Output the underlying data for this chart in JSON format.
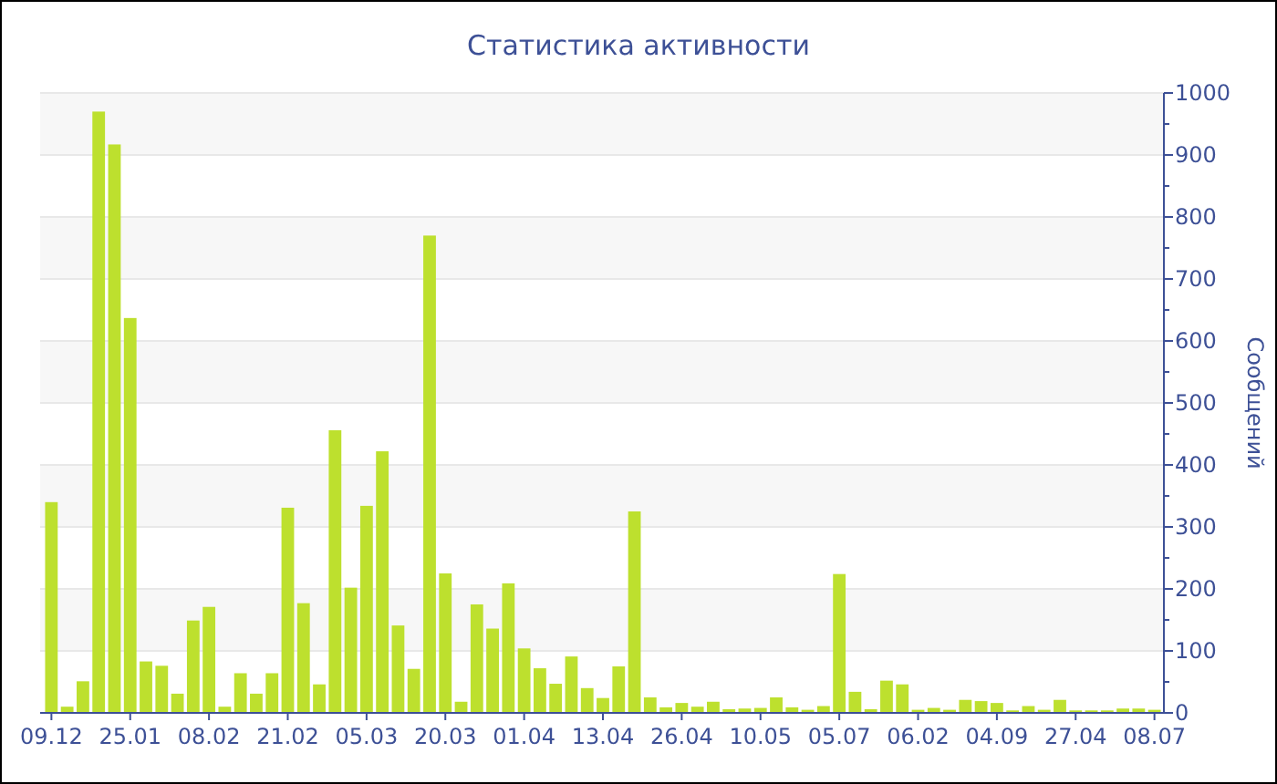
{
  "chart_data": {
    "type": "bar",
    "title": "Статистика активности",
    "ylabel": "Сообщений",
    "categories": [
      "09.12",
      null,
      null,
      null,
      null,
      "25.01",
      null,
      null,
      null,
      null,
      "08.02",
      null,
      null,
      null,
      null,
      "21.02",
      null,
      null,
      null,
      null,
      "05.03",
      null,
      null,
      null,
      null,
      "20.03",
      null,
      null,
      null,
      null,
      "01.04",
      null,
      null,
      null,
      null,
      "13.04",
      null,
      null,
      null,
      null,
      "26.04",
      null,
      null,
      null,
      null,
      "10.05",
      null,
      null,
      null,
      null,
      "05.07",
      null,
      null,
      null,
      null,
      "06.02",
      null,
      null,
      null,
      null,
      "04.09",
      null,
      null,
      null,
      null,
      "27.04",
      null,
      null,
      null,
      null,
      "08.07"
    ],
    "values": [
      340,
      10,
      51,
      970,
      917,
      637,
      83,
      76,
      31,
      149,
      171,
      10,
      64,
      31,
      64,
      331,
      177,
      46,
      456,
      202,
      334,
      422,
      141,
      71,
      770,
      225,
      18,
      175,
      136,
      209,
      104,
      72,
      47,
      91,
      40,
      24,
      75,
      325,
      25,
      9,
      16,
      10,
      18,
      6,
      7,
      8,
      25,
      9,
      5,
      11,
      224,
      34,
      6,
      52,
      46,
      5,
      8,
      5,
      21,
      19,
      16,
      4,
      11,
      5,
      21,
      4,
      4,
      4,
      7,
      7,
      5
    ],
    "color": "#bde02e",
    "ylim": [
      0,
      1000
    ],
    "yticks": [
      0,
      100,
      200,
      300,
      400,
      500,
      600,
      700,
      800,
      900,
      1000
    ],
    "grid": "y"
  }
}
